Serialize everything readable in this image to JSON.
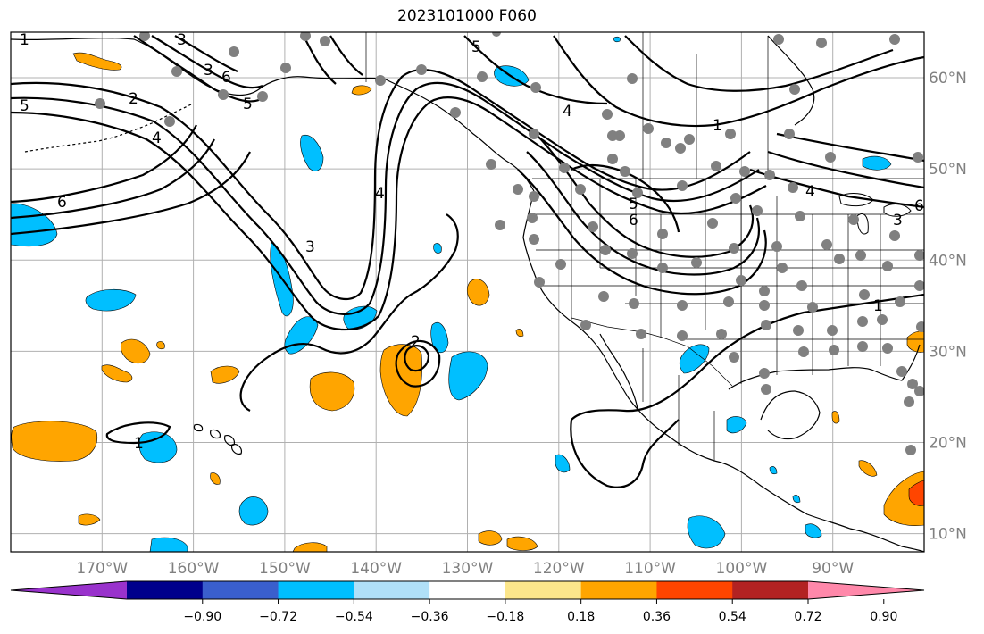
{
  "title": "2023101000 F060",
  "map": {
    "lon_range": [
      -180,
      -80
    ],
    "lat_range": [
      8,
      65
    ],
    "lon_ticks": [
      -170,
      -160,
      -150,
      -140,
      -130,
      -120,
      -110,
      -100,
      -90
    ],
    "lon_tick_labels": [
      "170°W",
      "160°W",
      "150°W",
      "140°W",
      "130°W",
      "120°W",
      "110°W",
      "100°W",
      "90°W"
    ],
    "lat_ticks": [
      10,
      20,
      30,
      40,
      50,
      60
    ],
    "lat_tick_labels": [
      "10°N",
      "20°N",
      "30°N",
      "40°N",
      "50°N",
      "60°N"
    ],
    "grid": true,
    "contour_labels": [
      "1",
      "2",
      "3",
      "4",
      "5",
      "6"
    ],
    "station_marker_color": "#808080",
    "contour_color": "#000000"
  },
  "colorbar": {
    "labels": [
      "−0.90",
      "−0.72",
      "−0.54",
      "−0.36",
      "−0.18",
      "0.18",
      "0.36",
      "0.54",
      "0.72",
      "0.90"
    ],
    "colors": [
      "#9932cc",
      "#00008b",
      "#3a5fcd",
      "#00bfff",
      "#b0e0f8",
      "#ffffff",
      "#fce68b",
      "#ffa500",
      "#ff4500",
      "#b22222",
      "#ff88aa"
    ],
    "extend": "both"
  }
}
